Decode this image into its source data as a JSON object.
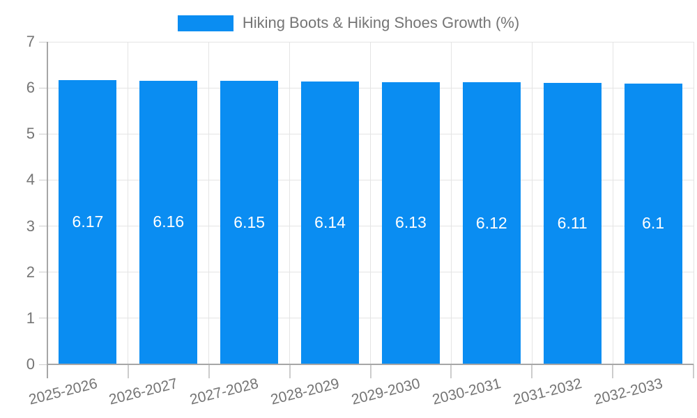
{
  "legend": {
    "position": "top"
  },
  "chart_data": {
    "type": "bar",
    "title": "",
    "series_name": "Hiking Boots & Hiking Shoes Growth (%)",
    "categories": [
      "2025-2026",
      "2026-2027",
      "2027-2028",
      "2028-2029",
      "2029-2030",
      "2030-2031",
      "2031-2032",
      "2032-2033"
    ],
    "values": [
      6.17,
      6.16,
      6.15,
      6.14,
      6.13,
      6.12,
      6.11,
      6.1
    ],
    "value_labels": [
      "6.17",
      "6.16",
      "6.15",
      "6.14",
      "6.13",
      "6.12",
      "6.11",
      "6.1"
    ],
    "xlabel": "",
    "ylabel": "",
    "ylim": [
      0,
      7
    ],
    "yticks": [
      0,
      1,
      2,
      3,
      4,
      5,
      6,
      7
    ],
    "grid": true,
    "legend_position": "top",
    "colors": {
      "bar": "#0a8df2",
      "grid": "#e4e4e4",
      "axis": "#a6a6a6",
      "tick": "#cccccc",
      "axis_text": "#757575",
      "value_label_text": "#ffffff",
      "background": "#ffffff"
    }
  }
}
